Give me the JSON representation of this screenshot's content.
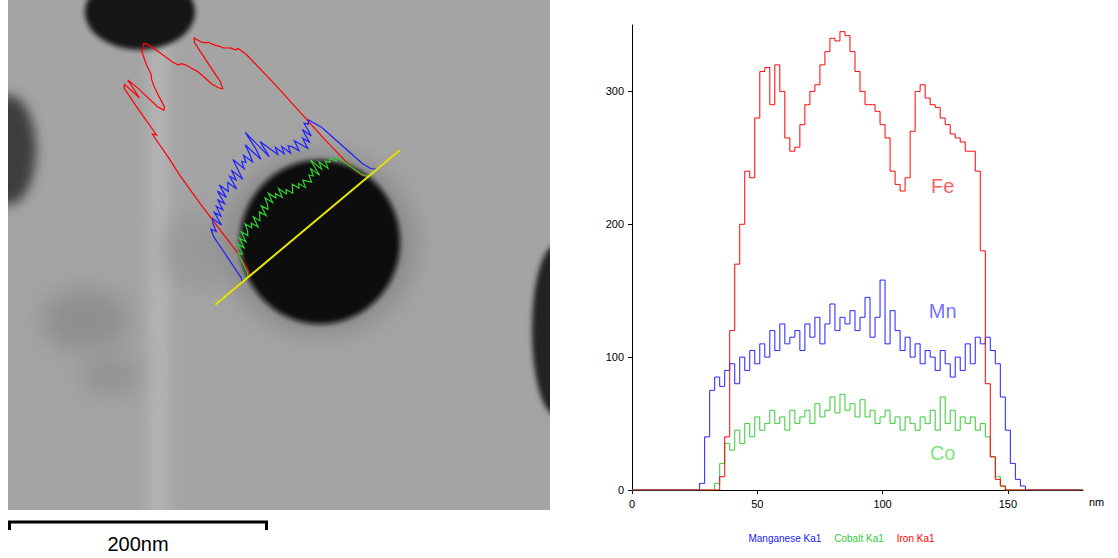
{
  "chart_data": {
    "type": "line",
    "line_style": "step",
    "x_label": "nm",
    "x": [
      0,
      2,
      4,
      6,
      8,
      10,
      12,
      14,
      16,
      18,
      20,
      22,
      24,
      26,
      28,
      30,
      32,
      34,
      36,
      38,
      40,
      42,
      44,
      46,
      48,
      50,
      52,
      54,
      56,
      58,
      60,
      62,
      64,
      66,
      68,
      70,
      72,
      74,
      76,
      78,
      80,
      82,
      84,
      86,
      88,
      90,
      92,
      94,
      96,
      98,
      100,
      102,
      104,
      106,
      108,
      110,
      112,
      114,
      116,
      118,
      120,
      122,
      124,
      126,
      128,
      130,
      132,
      134,
      136,
      138,
      140,
      142,
      144,
      146,
      148,
      150,
      152,
      154,
      156,
      158,
      160,
      162,
      164,
      166,
      168,
      170,
      172,
      174,
      176,
      178,
      180
    ],
    "series": [
      {
        "name": "Manganese Ka1",
        "color": "#2020ff",
        "values": [
          0,
          0,
          0,
          0,
          0,
          0,
          0,
          0,
          0,
          0,
          0,
          0,
          0,
          0,
          5,
          40,
          75,
          85,
          78,
          90,
          95,
          80,
          100,
          90,
          105,
          95,
          110,
          100,
          120,
          105,
          125,
          110,
          115,
          120,
          105,
          125,
          115,
          130,
          110,
          125,
          140,
          120,
          130,
          125,
          135,
          120,
          130,
          145,
          115,
          130,
          158,
          110,
          135,
          120,
          105,
          115,
          100,
          110,
          95,
          105,
          100,
          90,
          105,
          95,
          85,
          100,
          90,
          110,
          95,
          115,
          110,
          115,
          105,
          95,
          70,
          45,
          20,
          8,
          3,
          0,
          0,
          0,
          0,
          0,
          0,
          0,
          0,
          0,
          0,
          0,
          0
        ]
      },
      {
        "name": "Cobalt Ka1",
        "color": "#33cc33",
        "values": [
          0,
          0,
          0,
          0,
          0,
          0,
          0,
          0,
          0,
          0,
          0,
          0,
          0,
          0,
          0,
          0,
          0,
          5,
          20,
          35,
          30,
          45,
          35,
          50,
          40,
          55,
          45,
          50,
          60,
          50,
          55,
          45,
          60,
          50,
          55,
          60,
          50,
          65,
          55,
          60,
          70,
          58,
          72,
          60,
          65,
          55,
          68,
          55,
          60,
          50,
          55,
          60,
          50,
          55,
          45,
          55,
          50,
          45,
          55,
          50,
          60,
          45,
          70,
          50,
          60,
          45,
          55,
          50,
          55,
          45,
          50,
          40,
          25,
          10,
          3,
          0,
          0,
          0,
          0,
          0,
          0,
          0,
          0,
          0,
          0,
          0,
          0,
          0,
          0,
          0,
          0
        ]
      },
      {
        "name": "Iron Ka1",
        "color": "#ff0000",
        "values": [
          0,
          0,
          0,
          0,
          0,
          0,
          0,
          0,
          0,
          0,
          0,
          0,
          0,
          0,
          0,
          0,
          0,
          0,
          10,
          40,
          120,
          170,
          200,
          240,
          235,
          280,
          315,
          318,
          290,
          320,
          300,
          265,
          255,
          258,
          275,
          290,
          300,
          305,
          320,
          330,
          340,
          338,
          345,
          342,
          330,
          315,
          300,
          290,
          290,
          285,
          275,
          265,
          240,
          230,
          225,
          235,
          270,
          300,
          305,
          295,
          290,
          288,
          280,
          275,
          268,
          265,
          262,
          255,
          255,
          240,
          180,
          80,
          25,
          8,
          3,
          0,
          0,
          0,
          0,
          0,
          0,
          0,
          0,
          0,
          0,
          0,
          0,
          0,
          0,
          0,
          0
        ]
      }
    ],
    "annotations": [
      {
        "text": "Fe",
        "x": 124,
        "y": 229,
        "color": "#ff3030"
      },
      {
        "text": "Mn",
        "x": 124,
        "y": 135,
        "color": "#4a4aff"
      },
      {
        "text": "Co",
        "x": 124,
        "y": 28,
        "color": "#55dd55"
      }
    ],
    "xlim": [
      0,
      180
    ],
    "xticks": [
      0,
      50,
      100,
      150
    ],
    "ylim": [
      0,
      350
    ],
    "yticks": [
      0,
      100,
      200,
      300
    ],
    "grid": false,
    "legend": "bottom"
  },
  "image_panel": {
    "scale_bar": "200nm"
  }
}
